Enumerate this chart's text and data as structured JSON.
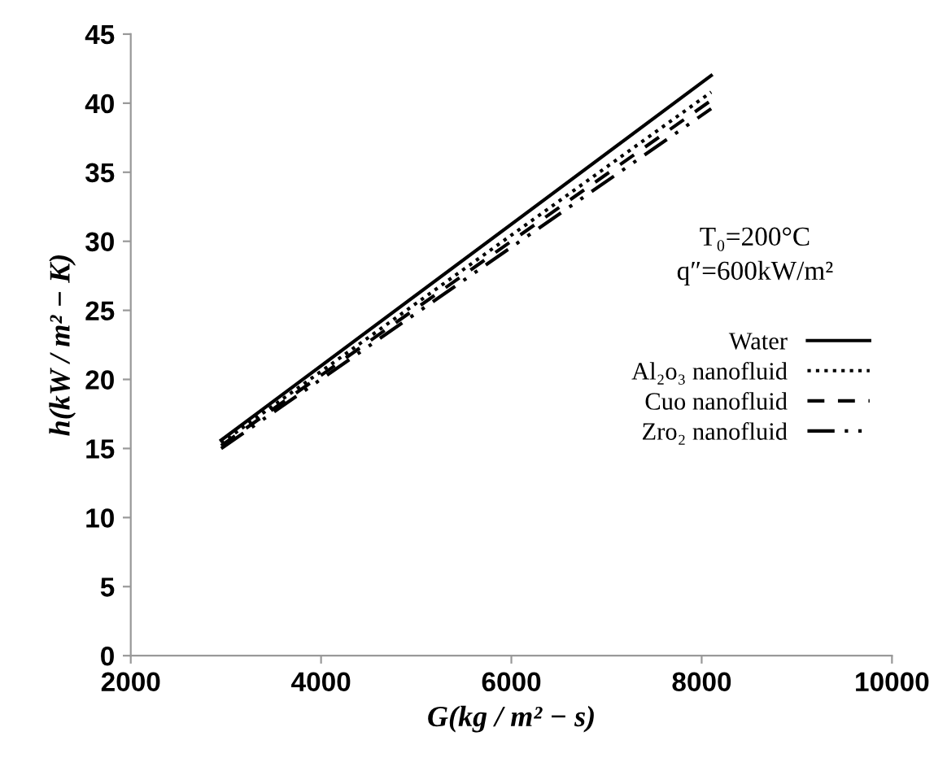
{
  "chart_data": {
    "type": "line",
    "xlabel": "G(kg / m² − s)",
    "ylabel": "h(kW / m² − K)",
    "annotations": [
      "T₀=200°C",
      "q″=600kW/m²"
    ],
    "xlim": [
      2000,
      10000
    ],
    "xticks": [
      2000,
      4000,
      6000,
      8000,
      10000
    ],
    "ylim": [
      0,
      45
    ],
    "yticks": [
      0,
      5,
      10,
      15,
      20,
      25,
      30,
      35,
      40,
      45
    ],
    "grid": false,
    "legend": "right",
    "marker": "none",
    "x": [
      2950,
      8100
    ],
    "series": [
      {
        "name": "Water",
        "color": "#000000",
        "line_style": "solid",
        "values": [
          15.6,
          42.0
        ]
      },
      {
        "name": "Al₂o₃ nanofluid",
        "color": "#000000",
        "line_style": "dotted",
        "values": [
          15.4,
          40.8
        ]
      },
      {
        "name": "Cuo nanofluid",
        "color": "#000000",
        "line_style": "dashed",
        "values": [
          15.2,
          40.2
        ]
      },
      {
        "name": "Zro₂ nanofluid",
        "color": "#000000",
        "line_style": "dashdot",
        "values": [
          15.0,
          39.6
        ]
      }
    ]
  }
}
